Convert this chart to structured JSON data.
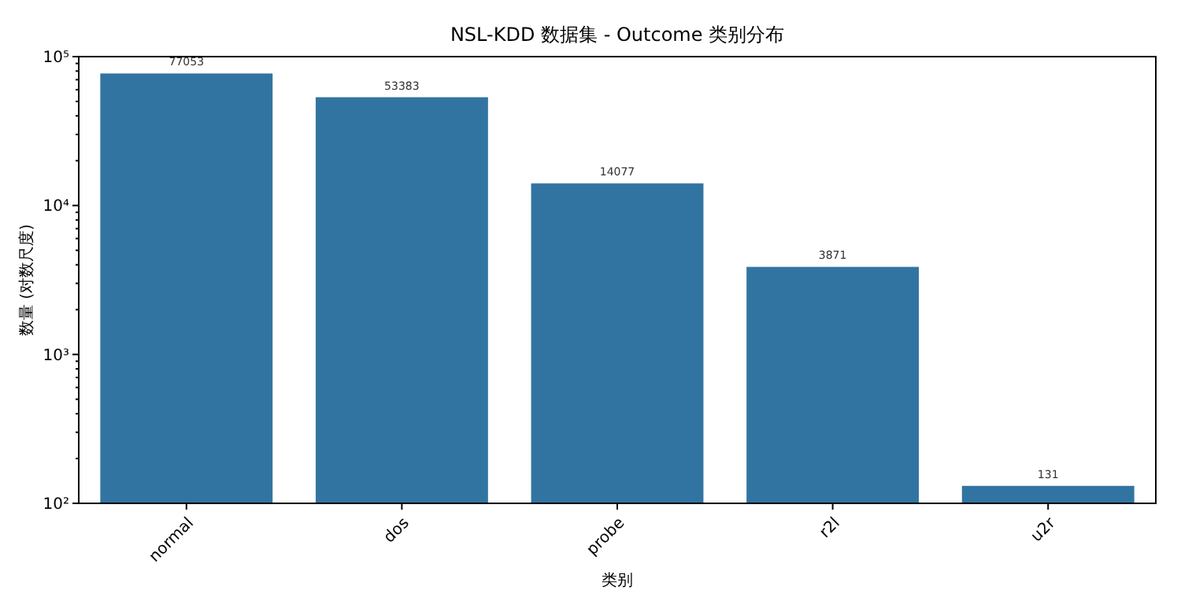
{
  "chart_data": {
    "type": "bar",
    "title": "NSL-KDD 数据集 - Outcome 类别分布",
    "xlabel": "类别",
    "ylabel": "数量 (对数尺度)",
    "categories": [
      "normal",
      "dos",
      "probe",
      "r2l",
      "u2r"
    ],
    "values": [
      77053,
      53383,
      14077,
      3871,
      131
    ],
    "color": "#3274a1",
    "log": true,
    "ylim": [
      100,
      100000
    ],
    "yticks": [
      {
        "value": 100,
        "label": "10²"
      },
      {
        "value": 1000,
        "label": "10³"
      },
      {
        "value": 10000,
        "label": "10⁴"
      },
      {
        "value": 100000,
        "label": "10⁵"
      }
    ],
    "data_labels": true
  }
}
